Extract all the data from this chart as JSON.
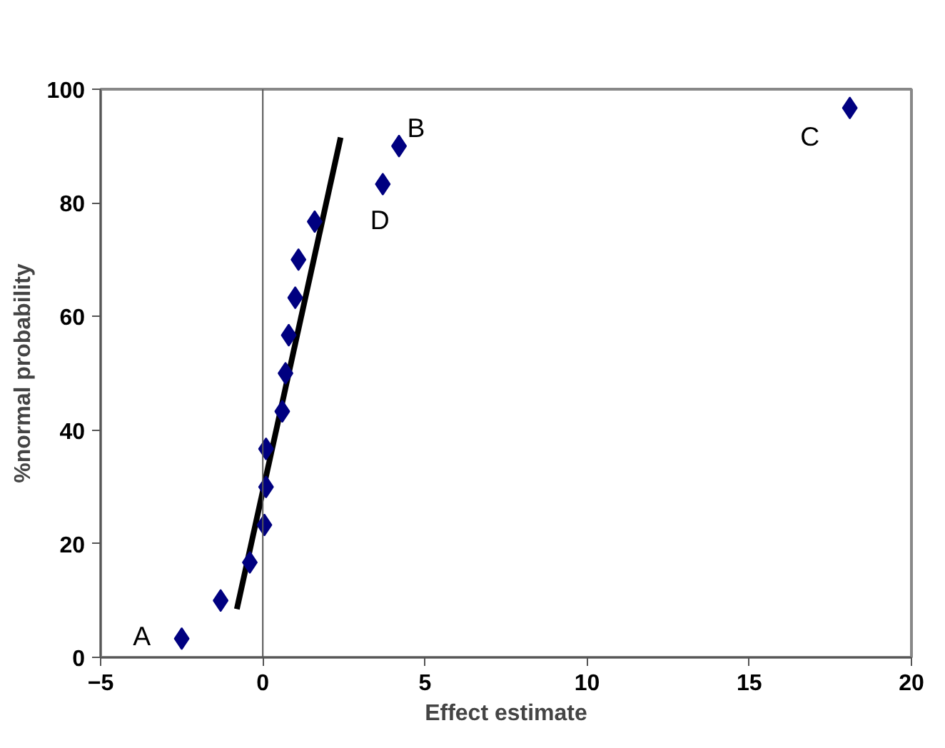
{
  "chart_data": {
    "type": "scatter",
    "xlabel": "Effect estimate",
    "ylabel": "%normal probability",
    "series": [
      {
        "color": "#000080",
        "marker": "diamond",
        "x": [
          -2.5,
          -1.3,
          -0.4,
          0.05,
          0.1,
          0.1,
          0.6,
          0.7,
          0.8,
          1.0,
          1.1,
          1.6,
          3.7,
          4.2,
          18.1
        ],
        "values": [
          3.3,
          10,
          16.7,
          23.3,
          30,
          36.7,
          43.3,
          50,
          56.7,
          63.3,
          70,
          76.7,
          83.3,
          90,
          96.7
        ]
      },
      {
        "type": "line",
        "color": "#000000",
        "x": [
          -0.8,
          2.4
        ],
        "values": [
          8.5,
          91.5
        ]
      }
    ],
    "annotations": [
      {
        "text": "A",
        "x": -2.5,
        "y": 3.3
      },
      {
        "text": "B",
        "x": 4.2,
        "y": 90
      },
      {
        "text": "C",
        "x": 18.1,
        "y": 96.7
      },
      {
        "text": "D",
        "x": 3.7,
        "y": 83.3
      }
    ],
    "ref_lines": [
      {
        "axis": "x",
        "value": 0,
        "color": "#555555"
      }
    ],
    "xlim": [
      -5,
      20
    ],
    "xticks": [
      -5,
      0,
      5,
      10,
      15,
      20
    ],
    "ylim": [
      0,
      100
    ],
    "yticks": [
      0,
      20,
      40,
      60,
      80,
      100
    ],
    "grid": false
  }
}
